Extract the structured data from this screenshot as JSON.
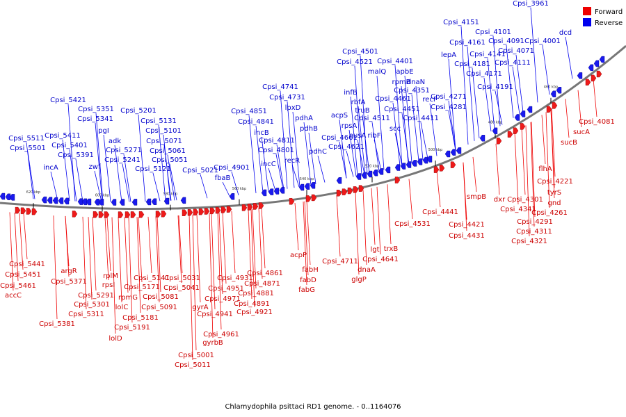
{
  "legend": {
    "forward": {
      "label": "Forward",
      "color": "#ee0000"
    },
    "reverse": {
      "label": "Reverse",
      "color": "#0000ee"
    }
  },
  "caption": "Chlamydophila psittaci RD1 genome. - 0..1164076",
  "backbone_color": "#777777",
  "kbp_marks": [
    "620 kbp",
    "600 kbp",
    "580 kbp",
    "560 kbp",
    "540 kbp",
    "520 kbp",
    "500 kbp",
    "480 kbp",
    "460 kbp"
  ],
  "reverse_labels": [
    "Cpsi_3961",
    "Cpsi_4151",
    "Cpsi_4101",
    "dcd",
    "Cpsi_4161",
    "Cpsi_4091",
    "Cpsi_4001",
    "Cpsi_4071",
    "Cpsi_4501",
    "Cpsi_4141",
    "Cpsi_4521",
    "lepA",
    "Cpsi_4401",
    "malQ",
    "apbE",
    "Cpsi_4181",
    "Cpsi_4111",
    "rpmB",
    "dnaN",
    "Cpsi_4171",
    "Cpsi_4741",
    "Cpsi_4351",
    "Cpsi_4191",
    "Cpsi_4731",
    "infB",
    "recF",
    "rbfA",
    "Cpsi_4461",
    "Cpsi_4271",
    "lpxD",
    "truB",
    "Cpsi_4451",
    "Cpsi_4281",
    "Cpsi_4851",
    "pdhA",
    "acpS",
    "Cpsi_4511",
    "Cpsi_4411",
    "Cpsi_4841",
    "rpsA",
    "scc",
    "pdhB",
    "incB",
    "nusA",
    "ribF",
    "Cpsi_4661",
    "Cpsi_4811",
    "Cpsi_4621",
    "pdhC",
    "Cpsi_4801",
    "recR",
    "incC",
    "Cpsi_4901",
    "fbaB",
    "Cpsi_5421",
    "Cpsi_5351",
    "Cpsi_5201",
    "Cpsi_5341",
    "Cpsi_5131",
    "pgI",
    "Cpsi_5101",
    "Cpsi_5511",
    "Cpsi_5411",
    "adk",
    "Cpsi_5071",
    "Cpsi_5501",
    "Cpsi_5401",
    "Cpsi_5271",
    "Cpsi_5061",
    "Cpsi_5391",
    "Cpsi_5241",
    "Cpsi_5051",
    "incA",
    "zwf",
    "Cpsi_5121",
    "Cpsi_5021"
  ],
  "forward_labels": [
    "Cpsi_4081",
    "sucA",
    "sucB",
    "flhA",
    "Cpsi_4221",
    "tyrS",
    "dxr",
    "Cpsi_4301",
    "gnd",
    "Cpsi_4341",
    "Cpsi_4261",
    "Cpsi_4291",
    "smpB",
    "Cpsi_4311",
    "Cpsi_4441",
    "Cpsi_4421",
    "Cpsi_4321",
    "Cpsi_4431",
    "Cpsi_4531",
    "trxB",
    "lgt",
    "Cpsi_4641",
    "Cpsi_4711",
    "dnaA",
    "glgP",
    "acpP",
    "fabH",
    "fabD",
    "fabG",
    "Cpsi_4861",
    "Cpsi_4871",
    "Cpsi_4881",
    "Cpsi_4891",
    "Cpsi_4931",
    "Cpsi_4921",
    "Cpsi_5031",
    "Cpsi_4951",
    "Cpsi_5041",
    "Cpsi_4971",
    "Cpsi_4941",
    "gyrA",
    "Cpsi_4961",
    "gyrbB",
    "Cpsi_5001",
    "Cpsi_5011",
    "Cpsi_5141",
    "Cpsi_5081",
    "rplM",
    "Cpsi_5171",
    "Cpsi_5091",
    "rpsI",
    "rpmG",
    "Cpsi_5181",
    "lolC",
    "Cpsi_5191",
    "lolD",
    "argR",
    "Cpsi_5371",
    "Cpsi_5291",
    "Cpsi_5301",
    "Cpsi_5311",
    "Cpsi_5381",
    "Cpsi_5441",
    "Cpsi_5451",
    "Cpsi_5461",
    "accC"
  ]
}
